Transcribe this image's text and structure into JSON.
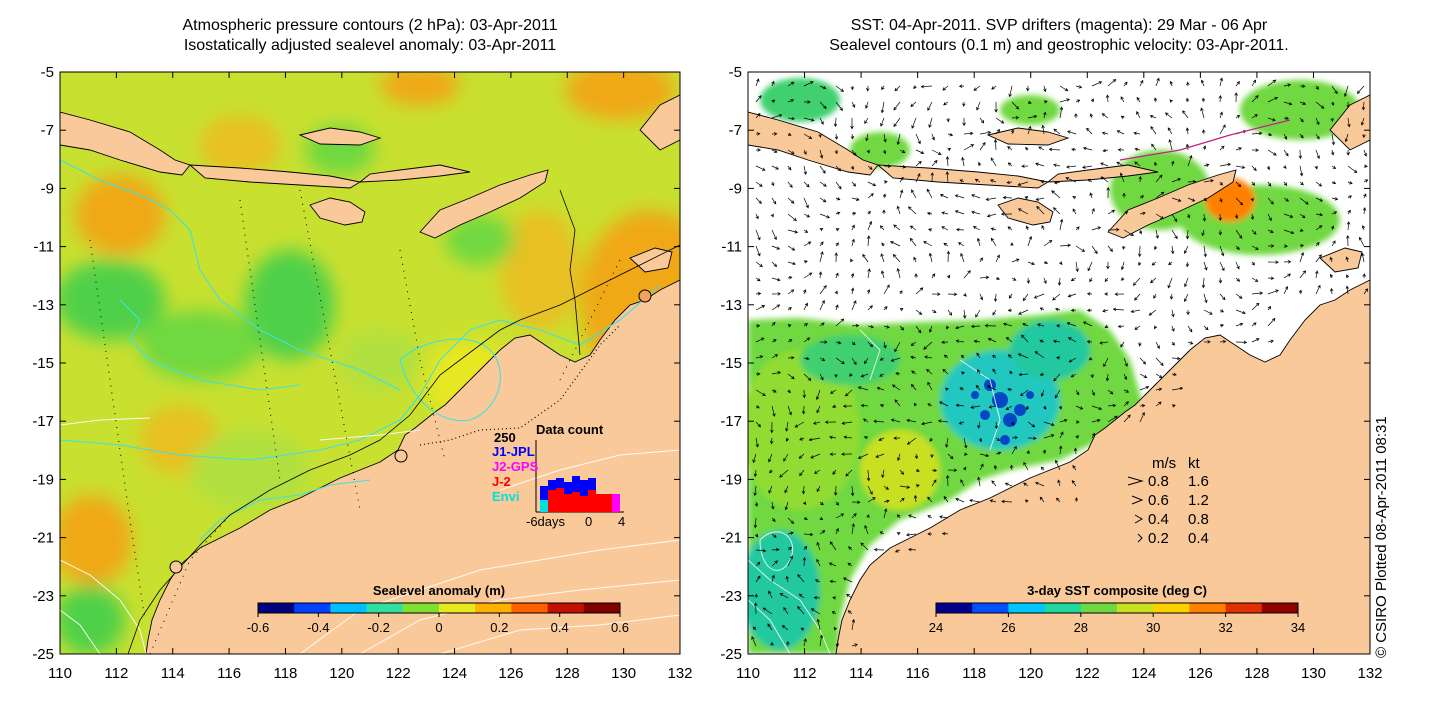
{
  "left_panel": {
    "title_line1": "Atmospheric pressure contours (2 hPa): 03-Apr-2011",
    "title_line2": "Isostatically adjusted sealevel anomaly: 03-Apr-2011",
    "colorbar": {
      "label": "Sealevel anomaly (m)",
      "ticks": [
        "-0.6",
        "-0.4",
        "-0.2",
        "0",
        "0.2",
        "0.4",
        "0.6"
      ],
      "colors": [
        "#00007f",
        "#0040ff",
        "#00c0ff",
        "#30e0a0",
        "#80e030",
        "#e8e820",
        "#ffb000",
        "#ff6000",
        "#c01000",
        "#800000"
      ]
    },
    "inset": {
      "title": "Data count",
      "ymax_label": "250",
      "legend": [
        {
          "label": "J1-JPL",
          "color": "#0000ff"
        },
        {
          "label": "J2-GPS",
          "color": "#ff00ff"
        },
        {
          "label": "J-2",
          "color": "#ff0000"
        },
        {
          "label": "Envi",
          "color": "#00e0e0"
        }
      ],
      "x_labels": [
        "-6days",
        "0",
        "4"
      ]
    }
  },
  "right_panel": {
    "title_line1": "SST: 04-Apr-2011. SVP drifters (magenta): 29 Mar - 06 Apr",
    "title_line2": "Sealevel contours (0.1 m) and geostrophic velocity: 03-Apr-2011.",
    "colorbar": {
      "label": "3-day SST composite (deg C)",
      "ticks": [
        "24",
        "26",
        "28",
        "30",
        "32",
        "34"
      ],
      "colors": [
        "#00008f",
        "#0050ff",
        "#00c8ff",
        "#20d8a0",
        "#70d840",
        "#c8e020",
        "#ffd000",
        "#ff8000",
        "#e03000",
        "#900000"
      ]
    },
    "velocity_key": {
      "header_ms": "m/s",
      "header_kt": "kt",
      "rows": [
        {
          "ms": "0.8",
          "kt": "1.6"
        },
        {
          "ms": "0.6",
          "kt": "1.2"
        },
        {
          "ms": "0.4",
          "kt": "0.8"
        },
        {
          "ms": "0.2",
          "kt": "0.4"
        }
      ]
    }
  },
  "axes": {
    "x_labels": [
      "110",
      "112",
      "114",
      "116",
      "118",
      "120",
      "122",
      "124",
      "126",
      "128",
      "130",
      "132"
    ],
    "y_labels": [
      "-5",
      "-7",
      "-9",
      "-11",
      "-13",
      "-15",
      "-17",
      "-19",
      "-21",
      "-23",
      "-25"
    ],
    "x_range": [
      110,
      132
    ],
    "y_range": [
      -25,
      -5
    ]
  },
  "colors": {
    "land": "#f9c99a",
    "coast": "#000000",
    "cyan_contour": "#40e0e0",
    "pressure_contour": "#ffffff",
    "sla_base": "#c8e030",
    "sla_orange": "#f0a818",
    "sla_green": "#50d048"
  },
  "copyright": "© CSIRO Plotted 08-Apr-2011 08:31"
}
